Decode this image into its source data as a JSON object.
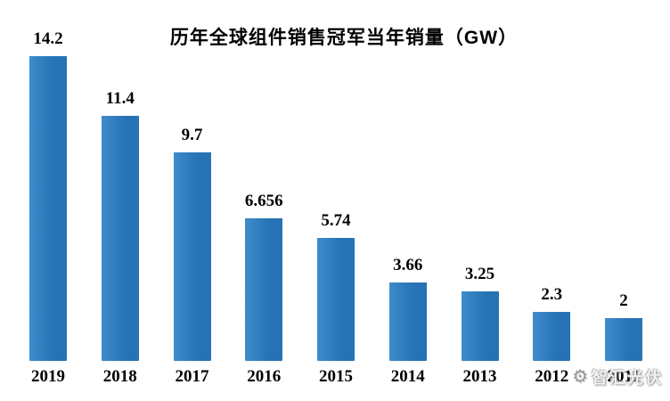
{
  "chart_data": {
    "type": "bar",
    "title": "历年全球组件销售冠军当年销量（GW）",
    "categories": [
      "2019",
      "2018",
      "2017",
      "2016",
      "2015",
      "2014",
      "2013",
      "2012",
      "2011"
    ],
    "values": [
      14.2,
      11.4,
      9.7,
      6.656,
      5.74,
      3.66,
      3.25,
      2.3,
      2
    ],
    "value_labels": [
      "14.2",
      "11.4",
      "9.7",
      "6.656",
      "5.74",
      "3.66",
      "3.25",
      "2.3",
      "2"
    ],
    "xlabel": "",
    "ylabel": "",
    "ylim": [
      0,
      14.2
    ],
    "grid": false,
    "legend": false,
    "bar_color": "#2573B5",
    "bar_color_light": "#3F8CCB",
    "label_color": "#000000"
  },
  "watermark": {
    "icon": "gear-sun-logo",
    "text": "智汇光伏"
  }
}
